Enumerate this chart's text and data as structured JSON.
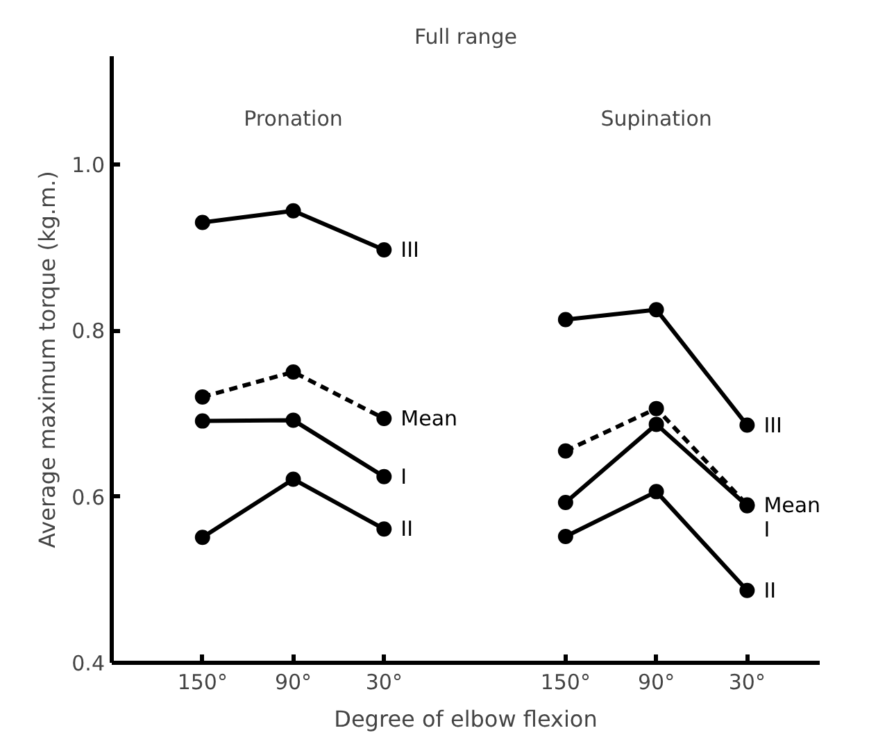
{
  "chart_data": {
    "type": "line",
    "title": "Full range",
    "xlabel": "Degree of elbow flexion",
    "ylabel": "Average maximum torque (kg.m.)",
    "annotations": [
      "Pronation",
      "Supination"
    ],
    "categories": [
      "150°",
      "90°",
      "30°",
      null,
      "150°",
      "90°",
      "30°"
    ],
    "ylim": [
      0.4,
      1.13
    ],
    "yticks": [
      0.4,
      0.6,
      0.8,
      {
        "value": 1,
        "label": "1.0"
      }
    ],
    "marker": "circle",
    "series": [
      {
        "name": "III",
        "color": "#000000",
        "values": [
          0.93,
          0.944,
          0.897,
          null,
          null,
          null,
          null
        ]
      },
      {
        "name": "Mean",
        "color": "#000000",
        "line_style": "dashed",
        "values": [
          0.72,
          0.75,
          0.694,
          null,
          null,
          null,
          null
        ]
      },
      {
        "name": "I",
        "color": "#000000",
        "values": [
          0.691,
          0.692,
          0.624,
          null,
          null,
          null,
          null
        ]
      },
      {
        "name": "II",
        "color": "#000000",
        "values": [
          0.551,
          0.621,
          0.561,
          null,
          null,
          null,
          null
        ]
      },
      {
        "name": "III",
        "color": "#000000",
        "values": [
          null,
          null,
          null,
          null,
          0.813,
          0.825,
          0.686
        ]
      },
      {
        "name": "Mean",
        "color": "#000000",
        "line_style": "dashed",
        "values": [
          null,
          null,
          null,
          null,
          0.655,
          0.706,
          0.59
        ]
      },
      {
        "name": "I",
        "color": "#000000",
        "values": [
          null,
          null,
          null,
          null,
          0.593,
          0.687,
          0.589
        ]
      },
      {
        "name": "II",
        "color": "#000000",
        "values": [
          null,
          null,
          null,
          null,
          0.552,
          0.606,
          0.487
        ]
      }
    ]
  }
}
